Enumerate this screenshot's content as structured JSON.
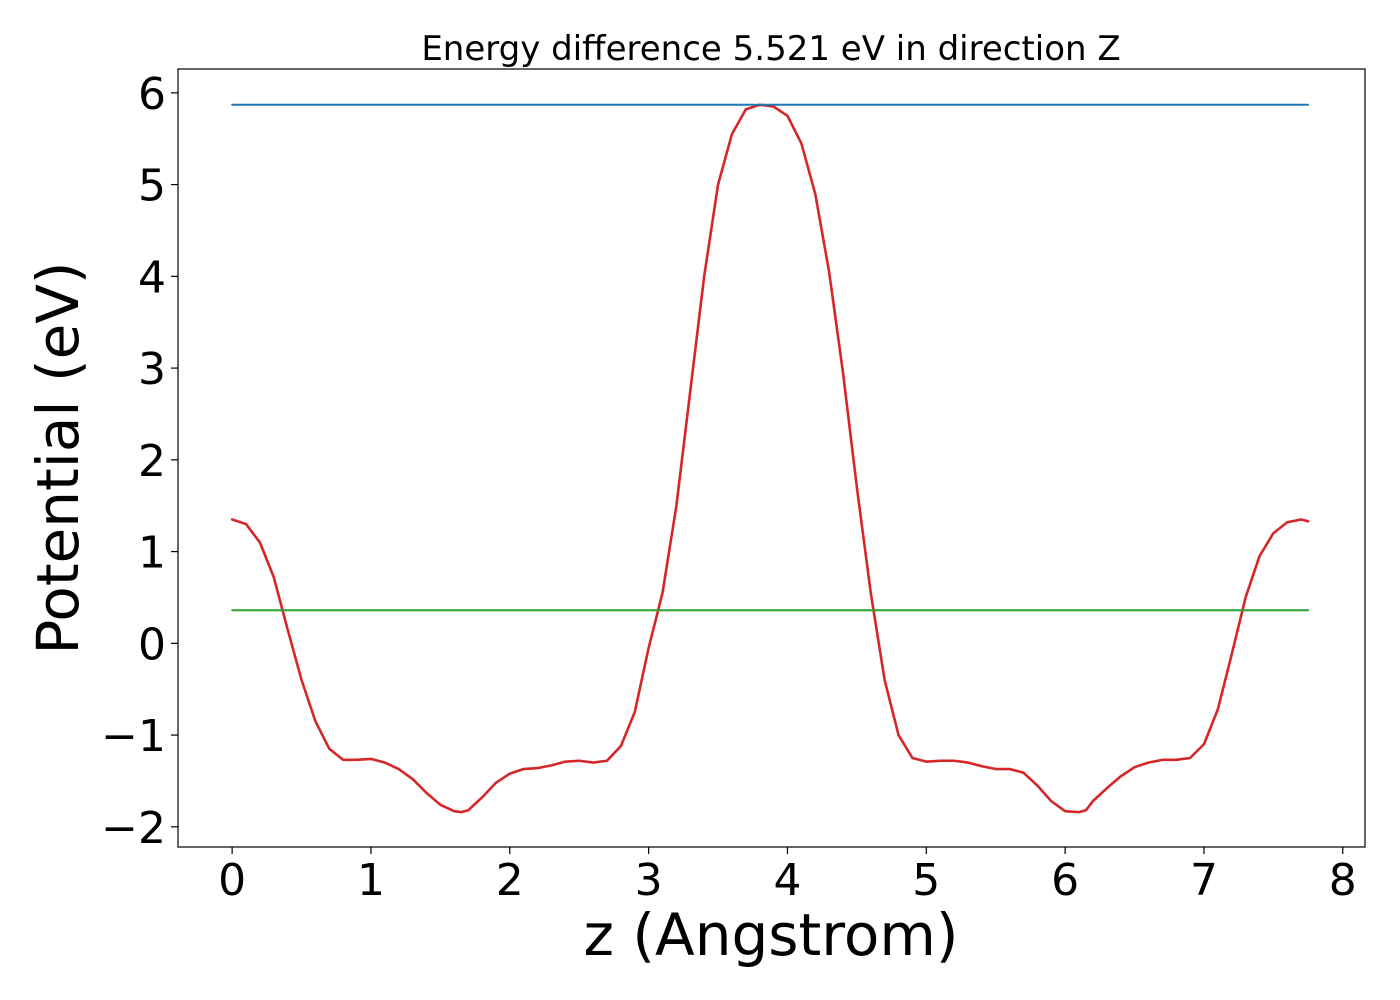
{
  "chart_data": {
    "type": "line",
    "title": "Energy difference 5.521 eV in direction Z",
    "xlabel": "z (Angstrom)",
    "ylabel": "Potential (eV)",
    "xlim": [
      -0.39,
      8.16
    ],
    "ylim": [
      -2.22,
      6.26
    ],
    "xticks": [
      0,
      1,
      2,
      3,
      4,
      5,
      6,
      7,
      8
    ],
    "yticks": [
      -2,
      -1,
      0,
      1,
      2,
      3,
      4,
      5,
      6
    ],
    "xtick_labels": [
      "0",
      "1",
      "2",
      "3",
      "4",
      "5",
      "6",
      "7",
      "8"
    ],
    "ytick_labels": [
      "−2",
      "−1",
      "0",
      "1",
      "2",
      "3",
      "4",
      "5",
      "6"
    ],
    "grid": false,
    "legend": false,
    "series": [
      {
        "color": "#d62728",
        "x": [
          0.0,
          0.1,
          0.2,
          0.3,
          0.4,
          0.5,
          0.6,
          0.7,
          0.8,
          0.9,
          1.0,
          1.1,
          1.2,
          1.3,
          1.4,
          1.5,
          1.6,
          1.65,
          1.7,
          1.8,
          1.9,
          2.0,
          2.1,
          2.2,
          2.3,
          2.4,
          2.5,
          2.6,
          2.7,
          2.8,
          2.9,
          3.0,
          3.1,
          3.2,
          3.3,
          3.4,
          3.5,
          3.6,
          3.7,
          3.8,
          3.9,
          4.0,
          4.1,
          4.2,
          4.3,
          4.4,
          4.5,
          4.6,
          4.7,
          4.8,
          4.9,
          5.0,
          5.1,
          5.2,
          5.3,
          5.4,
          5.5,
          5.6,
          5.7,
          5.8,
          5.9,
          6.0,
          6.1,
          6.15,
          6.2,
          6.3,
          6.4,
          6.5,
          6.6,
          6.7,
          6.8,
          6.9,
          7.0,
          7.1,
          7.2,
          7.3,
          7.4,
          7.5,
          7.6,
          7.7,
          7.75
        ],
        "values": [
          1.35,
          1.3,
          1.1,
          0.72,
          0.15,
          -0.4,
          -0.85,
          -1.15,
          -1.27,
          -1.27,
          -1.26,
          -1.3,
          -1.37,
          -1.48,
          -1.63,
          -1.76,
          -1.83,
          -1.84,
          -1.82,
          -1.68,
          -1.52,
          -1.42,
          -1.37,
          -1.36,
          -1.33,
          -1.29,
          -1.28,
          -1.3,
          -1.28,
          -1.12,
          -0.75,
          -0.05,
          0.55,
          1.5,
          2.75,
          4.0,
          5.0,
          5.55,
          5.82,
          5.87,
          5.85,
          5.75,
          5.45,
          4.9,
          4.05,
          2.95,
          1.7,
          0.55,
          -0.4,
          -1.0,
          -1.25,
          -1.29,
          -1.28,
          -1.28,
          -1.3,
          -1.34,
          -1.37,
          -1.37,
          -1.41,
          -1.55,
          -1.72,
          -1.83,
          -1.84,
          -1.82,
          -1.72,
          -1.58,
          -1.45,
          -1.35,
          -1.3,
          -1.27,
          -1.27,
          -1.25,
          -1.1,
          -0.72,
          -0.12,
          0.5,
          0.95,
          1.2,
          1.32,
          1.35,
          1.33
        ]
      },
      {
        "color": "#1f77b4",
        "x": [
          0.0,
          7.75
        ],
        "values": [
          5.87,
          5.87
        ]
      },
      {
        "color": "#2ca02c",
        "x": [
          0.0,
          7.75
        ],
        "values": [
          0.36,
          0.36
        ]
      }
    ]
  }
}
